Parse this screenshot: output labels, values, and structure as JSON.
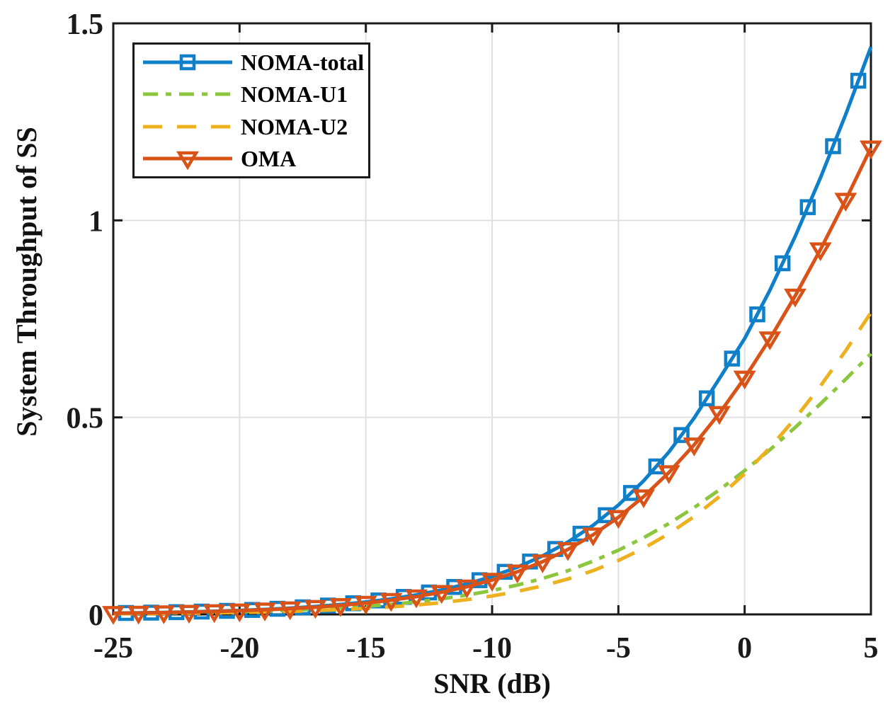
{
  "figure": {
    "background": "#ffffff"
  },
  "chart_data": {
    "type": "line",
    "title": "",
    "xlabel": "SNR (dB)",
    "ylabel": "System Throughput of SS",
    "xlim": [
      -25,
      5
    ],
    "ylim": [
      0,
      1.5
    ],
    "xticks": {
      "values": [
        -25,
        -20,
        -15,
        -10,
        -5,
        0,
        5
      ],
      "labels": [
        "-25",
        "-20",
        "-15",
        "-10",
        "-5",
        "0",
        "5"
      ]
    },
    "yticks": {
      "values": [
        0,
        0.5,
        1,
        1.5
      ],
      "labels": [
        "0",
        "0.5",
        "1",
        "1.5"
      ]
    },
    "grid": "on",
    "grid_color": "#e0e0e0",
    "axis_color": "#1a1a1a",
    "legend_position": "top-left",
    "x": [
      -25,
      -24,
      -23,
      -22,
      -21,
      -20,
      -19,
      -18,
      -17,
      -16,
      -15,
      -14,
      -13,
      -12,
      -11,
      -10,
      -9,
      -8,
      -7,
      -6,
      -5,
      -4,
      -3,
      -2,
      -1,
      0,
      1,
      2,
      3,
      4,
      5
    ],
    "series": [
      {
        "name": "NOMA-total",
        "color": "#0e7fc8",
        "line_style": "solid",
        "marker": "square",
        "marker_fill": "none",
        "marker_x_offset": 0.5,
        "values": [
          0.0032,
          0.004,
          0.005,
          0.0064,
          0.008,
          0.01,
          0.0126,
          0.0159,
          0.02,
          0.0251,
          0.0314,
          0.0394,
          0.0494,
          0.0619,
          0.0773,
          0.0963,
          0.1198,
          0.1485,
          0.1835,
          0.2261,
          0.2774,
          0.339,
          0.4121,
          0.4983,
          0.5985,
          0.7,
          0.8229,
          0.9592,
          1.1079,
          1.2686,
          1.4402
        ]
      },
      {
        "name": "NOMA-U1",
        "color": "#8cc63e",
        "line_style": "dashdot",
        "marker": "none",
        "marker_x_offset": 0,
        "values": [
          0.0021,
          0.0026,
          0.0033,
          0.0042,
          0.0052,
          0.0066,
          0.0083,
          0.0104,
          0.013,
          0.0163,
          0.0204,
          0.0255,
          0.0317,
          0.0395,
          0.049,
          0.0606,
          0.0745,
          0.0912,
          0.1108,
          0.1353,
          0.1629,
          0.1946,
          0.2307,
          0.2712,
          0.3161,
          0.365,
          0.4179,
          0.4744,
          0.5342,
          0.5967,
          0.6616
        ]
      },
      {
        "name": "NOMA-U2",
        "color": "#edb120",
        "line_style": "dashed",
        "marker": "none",
        "marker_x_offset": 0,
        "values": [
          0.0015,
          0.0019,
          0.0024,
          0.0031,
          0.0039,
          0.0048,
          0.0061,
          0.0077,
          0.0096,
          0.0121,
          0.0152,
          0.0191,
          0.0239,
          0.0299,
          0.0374,
          0.0467,
          0.0583,
          0.0725,
          0.0899,
          0.1111,
          0.1368,
          0.1678,
          0.2049,
          0.2483,
          0.2989,
          0.357,
          0.4232,
          0.4973,
          0.5795,
          0.6692,
          0.766
        ]
      },
      {
        "name": "OMA",
        "color": "#d95319",
        "line_style": "solid",
        "marker": "triangle-down",
        "marker_fill": "none",
        "marker_x_offset": 0,
        "values": [
          0.0029,
          0.0037,
          0.0046,
          0.0058,
          0.0073,
          0.0092,
          0.0116,
          0.0145,
          0.0182,
          0.0229,
          0.0287,
          0.0359,
          0.045,
          0.0562,
          0.0701,
          0.0872,
          0.1082,
          0.1338,
          0.1648,
          0.2021,
          0.2465,
          0.2989,
          0.3601,
          0.4304,
          0.5104,
          0.6002,
          0.6996,
          0.8084,
          0.9259,
          1.0515,
          1.1842
        ]
      }
    ]
  }
}
